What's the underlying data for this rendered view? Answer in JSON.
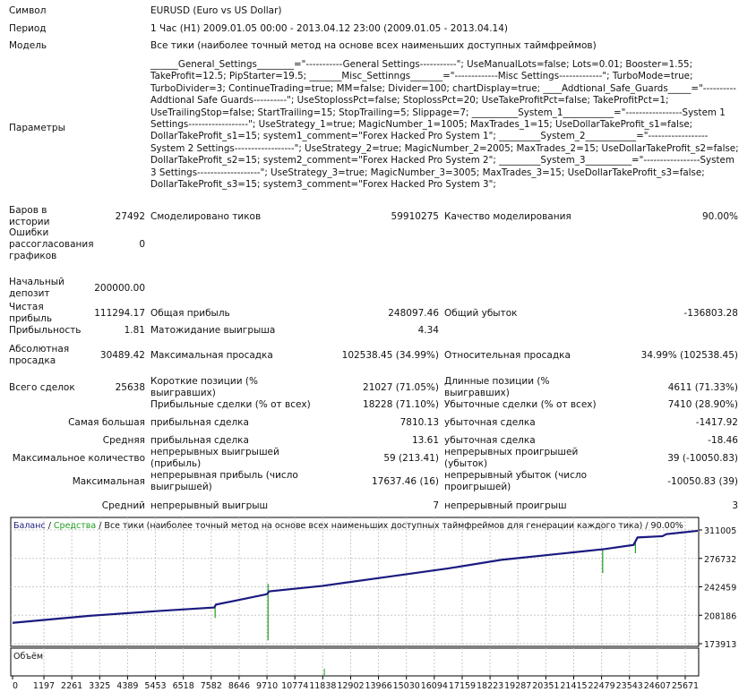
{
  "header": {
    "symbol_label": "Символ",
    "symbol_value": "EURUSD (Euro vs US Dollar)",
    "period_label": "Период",
    "period_value": "1 Час (H1) 2009.01.05 00:00 - 2013.04.12 23:00 (2009.01.05 - 2013.04.14)",
    "model_label": "Модель",
    "model_value": "Все тики (наиболее точный метод на основе всех наименьших доступных таймфреймов)",
    "params_label": "Параметры",
    "params_value": "______General_Settings________=\"-----------General Settings-----------\"; UseManualLots=false; Lots=0.01; Booster=1.55; TakeProfit=12.5; PipStarter=19.5; _______Misc_Settinngs_______=\"-------------Misc Settings-------------\"; TurboMode=true; TurboDivider=3; ContinueTrading=true; MM=false; Divider=100; chartDisplay=true; ____Addtional_Safe_Guards_____=\"----------Addtional Safe Guards----------\"; UseStoplossPct=false; StoplossPct=20; UseTakeProfitPct=false; TakeProfitPct=1; UseTrailingStop=false; StartTrailing=15; StopTrailing=5; Slippage=7; __________System_1___________=\"-----------------System 1 Settings------------------\"; UseStrategy_1=true; MagicNumber_1=1005; MaxTrades_1=15; UseDollarTakeProfit_s1=false; DollarTakeProfit_s1=15; system1_comment=\"Forex Hacked Pro System 1\"; _________System_2___________=\"------------------System 2 Settings------------------\"; UseStrategy_2=true; MagicNumber_2=2005; MaxTrades_2=15; UseDollarTakeProfit_s2=false; DollarTakeProfit_s2=15; system2_comment=\"Forex Hacked Pro System 2\"; _________System_3__________=\"-----------------System 3 Settings-------------------\"; UseStrategy_3=true; MagicNumber_3=3005; MaxTrades_3=15; UseDollarTakeProfit_s3=false; DollarTakeProfit_s3=15; system3_comment=\"Forex Hacked Pro System 3\";"
  },
  "stats": [
    {
      "l1": "Баров в истории",
      "v1": "27492",
      "l2": "Смоделировано тиков",
      "v2": "59910275",
      "l3": "Качество моделирования",
      "v3": "90.00%"
    },
    {
      "l1": "Ошибки рассогласования графиков",
      "v1": "0",
      "l2": "",
      "v2": "",
      "l3": "",
      "v3": ""
    },
    {
      "l1": "Начальный депозит",
      "v1": "200000.00",
      "l2": "",
      "v2": "",
      "l3": "",
      "v3": ""
    },
    {
      "l1": "Чистая прибыль",
      "v1": "111294.17",
      "l2": "Общая прибыль",
      "v2": "248097.46",
      "l3": "Общий убыток",
      "v3": "-136803.28"
    },
    {
      "l1": "Прибыльность",
      "v1": "1.81",
      "l2": "Матожидание выигрыша",
      "v2": "4.34",
      "l3": "",
      "v3": ""
    },
    {
      "l1": "Абсолютная просадка",
      "v1": "30489.42",
      "l2": "Максимальная просадка",
      "v2": "102538.45 (34.99%)",
      "l3": "Относительная просадка",
      "v3": "34.99% (102538.45)"
    },
    {
      "l1": "Всего сделок",
      "v1": "25638",
      "l2": "Короткие позиции (% выигравших)",
      "v2": "21027 (71.05%)",
      "l3": "Длинные позиции (% выигравших)",
      "v3": "4611 (71.33%)"
    },
    {
      "l1": "",
      "v1": "",
      "l2": "Прибыльные сделки (% от всех)",
      "v2": "18228 (71.10%)",
      "l3": "Убыточные сделки (% от всех)",
      "v3": "7410 (28.90%)"
    },
    {
      "w1": "Самая большая",
      "l2": "прибыльная сделка",
      "v2": "7810.13",
      "l3": "убыточная сделка",
      "v3": "-1417.92"
    },
    {
      "w1": "Средняя",
      "l2": "прибыльная сделка",
      "v2": "13.61",
      "l3": "убыточная сделка",
      "v3": "-18.46"
    },
    {
      "w1": "Максимальное количество",
      "l2": "непрерывных выигрышей (прибыль)",
      "v2": "59 (213.41)",
      "l3": "непрерывных проигрышей (убыток)",
      "v3": "39 (-10050.83)"
    },
    {
      "w1": "Максимальная",
      "l2": "непрерывная прибыль (число выигрышей)",
      "v2": "17637.46 (16)",
      "l3": "непрерывный убыток (число проигрышей)",
      "v3": "-10050.83 (39)"
    },
    {
      "w1": "Средний",
      "l2": "непрерывный выигрыш",
      "v2": "7",
      "l3": "непрерывный проигрыш",
      "v3": "3"
    }
  ],
  "chart_data": {
    "type": "line",
    "legend": {
      "balance": "Баланс",
      "sep1": " / ",
      "equity": "Средства",
      "rest": " / Все тики (наиболее точный метод на основе всех наименьших доступных таймфреймов для генерации каждого тика) / 90.00%"
    },
    "volume_label": "Объём",
    "colors": {
      "balance": "#1a1a80",
      "equity": "#1e9e1e",
      "grid": "#c8c8c8"
    },
    "y_ticks": [
      311005,
      276732,
      242459,
      208186,
      173913
    ],
    "x_ticks": [
      0,
      1197,
      2261,
      3325,
      4389,
      5453,
      6518,
      7582,
      8646,
      9710,
      10774,
      11838,
      12902,
      13966,
      15030,
      16094,
      17159,
      18223,
      19287,
      20351,
      21415,
      22479,
      23543,
      24607,
      25671
    ],
    "ylim": [
      173913,
      311005
    ],
    "grid": true,
    "series": [
      {
        "name": "Баланс",
        "x": [
          0,
          2940,
          5670,
          7700,
          7760,
          9700,
          9800,
          11800,
          14200,
          16600,
          18650,
          21400,
          22600,
          23700,
          23850,
          24800,
          24950,
          26150
        ],
        "y": [
          199000,
          207500,
          213500,
          217500,
          221000,
          233500,
          237000,
          243500,
          254000,
          264500,
          275000,
          284000,
          288000,
          293000,
          302000,
          303500,
          306000,
          310000
        ]
      },
      {
        "name": "Средства",
        "spikes": [
          {
            "x": 7730,
            "low": 205000
          },
          {
            "x": 9750,
            "low": 178000,
            "high": 246000
          },
          {
            "x": 22520,
            "low": 259000
          },
          {
            "x": 23770,
            "low": 283000
          }
        ]
      }
    ]
  }
}
